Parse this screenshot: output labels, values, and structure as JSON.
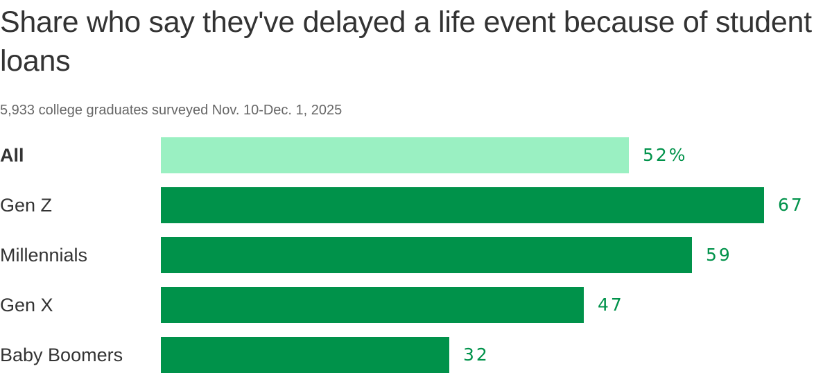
{
  "title": "Share who say they've delayed a life event because of student loans",
  "subtitle": "5,933 college graduates surveyed Nov. 10-Dec. 1, 2025",
  "colors": {
    "highlight": "#9af0c2",
    "bar": "#00924a",
    "value_text": "#00924a"
  },
  "chart_data": {
    "type": "bar",
    "orientation": "horizontal",
    "title": "Share who say they've delayed a life event because of student loans",
    "subtitle": "5,933 college graduates surveyed Nov. 10-Dec. 1, 2025",
    "categories": [
      "All",
      "Gen Z",
      "Millennials",
      "Gen X",
      "Baby Boomers"
    ],
    "values": [
      52,
      67,
      59,
      47,
      32
    ],
    "value_labels": [
      "52%",
      "67",
      "59",
      "47",
      "32"
    ],
    "unit": "%",
    "xlim": [
      0,
      67
    ],
    "grid": false,
    "highlight_category": "All"
  }
}
